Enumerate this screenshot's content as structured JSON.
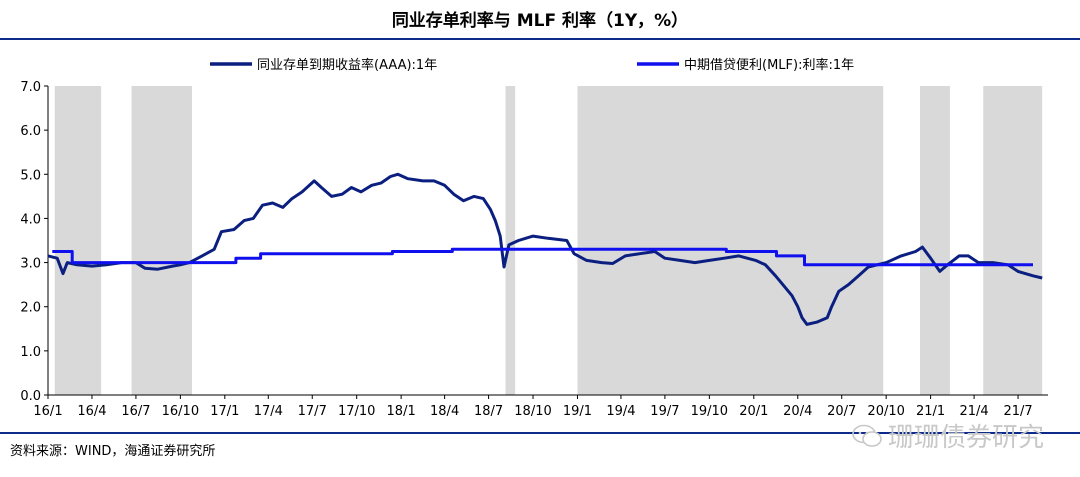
{
  "header": {
    "title": "同业存单利率与 MLF 利率（1Y，%）"
  },
  "footer": {
    "source": "资料来源：WIND，海通证券研究所"
  },
  "watermark": {
    "text": "珊珊债券研究",
    "icon": "wechat-icon"
  },
  "colors": {
    "ncd": "#0b1f80",
    "mlf": "#1010ee",
    "shade": "#d9d9d9",
    "rule": "#0b2a8a"
  },
  "chart_data": {
    "type": "line",
    "title": "同业存单利率与 MLF 利率（1Y，%）",
    "xlabel": "",
    "ylabel": "",
    "ylim": [
      0,
      7
    ],
    "yticks": [
      "0.0",
      "1.0",
      "2.0",
      "3.0",
      "4.0",
      "5.0",
      "6.0",
      "7.0"
    ],
    "xticks": [
      "16/1",
      "16/4",
      "16/7",
      "16/10",
      "17/1",
      "17/4",
      "17/7",
      "17/10",
      "18/1",
      "18/4",
      "18/7",
      "18/10",
      "19/1",
      "19/4",
      "19/7",
      "19/10",
      "20/1",
      "20/4",
      "20/7",
      "20/10",
      "21/1",
      "21/4",
      "21/7"
    ],
    "grid": false,
    "legend_position": "top",
    "shaded_periods": [
      [
        "2016-01-15",
        "2016-04-20"
      ],
      [
        "2016-06-22",
        "2016-10-25"
      ],
      [
        "2018-08-05",
        "2018-08-25"
      ],
      [
        "2019-01-01",
        "2020-09-25"
      ],
      [
        "2020-12-10",
        "2021-02-10"
      ],
      [
        "2021-04-20",
        "2021-08-20"
      ]
    ],
    "series": [
      {
        "name": "同业存单到期收益率(AAA):1年",
        "points": [
          [
            "2016-01-01",
            3.15
          ],
          [
            "2016-01-20",
            3.1
          ],
          [
            "2016-02-01",
            2.75
          ],
          [
            "2016-02-10",
            3.0
          ],
          [
            "2016-03-01",
            2.95
          ],
          [
            "2016-04-01",
            2.92
          ],
          [
            "2016-05-01",
            2.95
          ],
          [
            "2016-06-01",
            3.0
          ],
          [
            "2016-07-01",
            3.0
          ],
          [
            "2016-07-20",
            2.87
          ],
          [
            "2016-08-15",
            2.85
          ],
          [
            "2016-09-15",
            2.92
          ],
          [
            "2016-10-01",
            2.95
          ],
          [
            "2016-10-20",
            3.0
          ],
          [
            "2016-11-15",
            3.15
          ],
          [
            "2016-12-10",
            3.3
          ],
          [
            "2016-12-25",
            3.7
          ],
          [
            "2017-01-20",
            3.75
          ],
          [
            "2017-02-10",
            3.95
          ],
          [
            "2017-03-01",
            4.0
          ],
          [
            "2017-03-20",
            4.3
          ],
          [
            "2017-04-10",
            4.35
          ],
          [
            "2017-05-01",
            4.25
          ],
          [
            "2017-05-20",
            4.45
          ],
          [
            "2017-06-10",
            4.6
          ],
          [
            "2017-06-25",
            4.75
          ],
          [
            "2017-07-05",
            4.85
          ],
          [
            "2017-07-20",
            4.7
          ],
          [
            "2017-08-10",
            4.5
          ],
          [
            "2017-09-01",
            4.55
          ],
          [
            "2017-09-20",
            4.7
          ],
          [
            "2017-10-10",
            4.6
          ],
          [
            "2017-11-01",
            4.75
          ],
          [
            "2017-11-20",
            4.8
          ],
          [
            "2017-12-10",
            4.95
          ],
          [
            "2017-12-25",
            5.0
          ],
          [
            "2018-01-15",
            4.9
          ],
          [
            "2018-02-15",
            4.85
          ],
          [
            "2018-03-10",
            4.85
          ],
          [
            "2018-04-01",
            4.75
          ],
          [
            "2018-04-20",
            4.55
          ],
          [
            "2018-05-10",
            4.4
          ],
          [
            "2018-06-01",
            4.5
          ],
          [
            "2018-06-20",
            4.45
          ],
          [
            "2018-07-05",
            4.2
          ],
          [
            "2018-07-15",
            3.95
          ],
          [
            "2018-07-25",
            3.6
          ],
          [
            "2018-08-02",
            2.9
          ],
          [
            "2018-08-12",
            3.4
          ],
          [
            "2018-09-01",
            3.5
          ],
          [
            "2018-10-01",
            3.6
          ],
          [
            "2018-11-01",
            3.55
          ],
          [
            "2018-12-10",
            3.5
          ],
          [
            "2018-12-25",
            3.2
          ],
          [
            "2019-01-20",
            3.05
          ],
          [
            "2019-02-20",
            3.0
          ],
          [
            "2019-03-15",
            2.98
          ],
          [
            "2019-04-10",
            3.15
          ],
          [
            "2019-05-10",
            3.2
          ],
          [
            "2019-06-10",
            3.25
          ],
          [
            "2019-07-01",
            3.1
          ],
          [
            "2019-08-01",
            3.05
          ],
          [
            "2019-09-01",
            3.0
          ],
          [
            "2019-10-01",
            3.05
          ],
          [
            "2019-11-01",
            3.1
          ],
          [
            "2019-12-01",
            3.15
          ],
          [
            "2020-01-05",
            3.05
          ],
          [
            "2020-01-25",
            2.95
          ],
          [
            "2020-02-15",
            2.7
          ],
          [
            "2020-03-01",
            2.5
          ],
          [
            "2020-03-20",
            2.25
          ],
          [
            "2020-04-01",
            2.0
          ],
          [
            "2020-04-10",
            1.75
          ],
          [
            "2020-04-20",
            1.6
          ],
          [
            "2020-05-10",
            1.65
          ],
          [
            "2020-06-01",
            1.75
          ],
          [
            "2020-06-10",
            2.0
          ],
          [
            "2020-06-25",
            2.35
          ],
          [
            "2020-07-15",
            2.5
          ],
          [
            "2020-08-05",
            2.7
          ],
          [
            "2020-08-25",
            2.9
          ],
          [
            "2020-10-01",
            3.0
          ],
          [
            "2020-11-01",
            3.15
          ],
          [
            "2020-12-01",
            3.25
          ],
          [
            "2020-12-15",
            3.35
          ],
          [
            "2021-01-01",
            3.1
          ],
          [
            "2021-01-20",
            2.8
          ],
          [
            "2021-02-05",
            2.95
          ],
          [
            "2021-03-01",
            3.15
          ],
          [
            "2021-03-20",
            3.15
          ],
          [
            "2021-04-10",
            3.0
          ],
          [
            "2021-05-10",
            3.0
          ],
          [
            "2021-06-10",
            2.95
          ],
          [
            "2021-07-01",
            2.8
          ],
          [
            "2021-08-01",
            2.7
          ],
          [
            "2021-08-20",
            2.65
          ]
        ]
      },
      {
        "name": "中期借贷便利(MLF):利率:1年",
        "points": [
          [
            "2016-01-10",
            3.25
          ],
          [
            "2016-02-20",
            3.0
          ],
          [
            "2016-06-01",
            3.0
          ],
          [
            "2016-06-15",
            3.0
          ],
          [
            "2016-12-10",
            3.0
          ],
          [
            "2017-01-24",
            3.1
          ],
          [
            "2017-03-16",
            3.2
          ],
          [
            "2017-12-14",
            3.25
          ],
          [
            "2018-04-17",
            3.3
          ],
          [
            "2019-11-05",
            3.25
          ],
          [
            "2020-02-17",
            3.15
          ],
          [
            "2020-04-15",
            2.95
          ],
          [
            "2021-08-01",
            2.95
          ]
        ]
      }
    ]
  }
}
